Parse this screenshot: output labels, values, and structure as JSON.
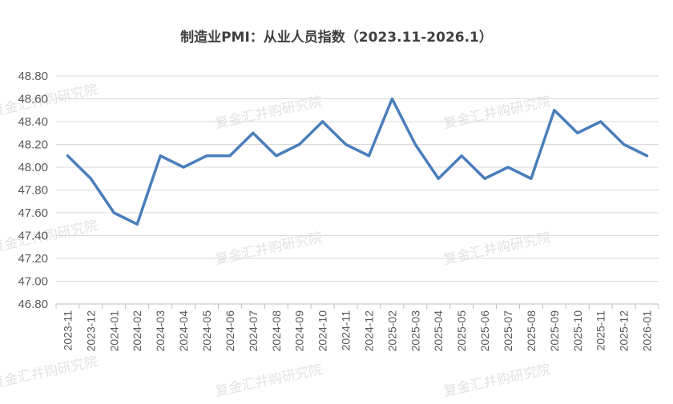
{
  "chart_data": {
    "type": "line",
    "title": "制造业PMI：从业人员指数（2023.11-2026.1）",
    "xlabel": "",
    "ylabel": "",
    "ylim": [
      46.8,
      48.8
    ],
    "yticks": [
      "46.80",
      "47.00",
      "47.20",
      "47.40",
      "47.60",
      "47.80",
      "48.00",
      "48.20",
      "48.40",
      "48.60",
      "48.80"
    ],
    "grid": true,
    "legend": "none",
    "series_color": "#4a7ebb",
    "categories": [
      "2023-11",
      "2023-12",
      "2024-01",
      "2024-02",
      "2024-03",
      "2024-04",
      "2024-05",
      "2024-06",
      "2024-07",
      "2024-08",
      "2024-09",
      "2024-10",
      "2024-11",
      "2024-12",
      "2025-02",
      "2025-03",
      "2025-04",
      "2025-05",
      "2025-06",
      "2025-07",
      "2025-08",
      "2025-09",
      "2025-10",
      "2025-11",
      "2025-12",
      "2026-01"
    ],
    "series": [
      {
        "values": [
          48.1,
          47.9,
          47.6,
          47.5,
          48.1,
          48.0,
          48.1,
          48.1,
          48.3,
          48.1,
          48.2,
          48.4,
          48.2,
          48.1,
          48.6,
          48.2,
          47.9,
          48.1,
          47.9,
          48.0,
          47.9,
          48.5,
          48.3,
          48.4,
          48.2,
          48.1
        ]
      }
    ]
  },
  "watermark": "复金汇井购研究院"
}
